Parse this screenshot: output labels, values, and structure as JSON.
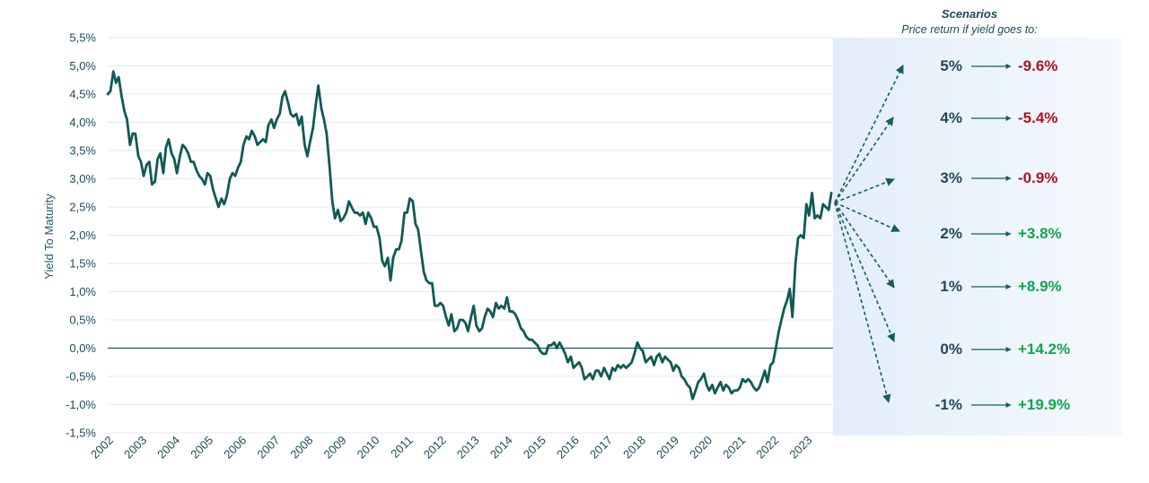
{
  "colors": {
    "line": "#0f5a55",
    "grid": "#e6e9ec",
    "zero": "#1d5557",
    "axis_text": "#1d4a57",
    "panel": "#e6f1fa",
    "arrow": "#155f5a",
    "negative": "#b0121c",
    "positive": "#13a44f"
  },
  "chart_data": {
    "type": "line",
    "ylabel": "Yield To Maturity",
    "ylim": [
      -1.5,
      5.5
    ],
    "yticks": [
      "5,5%",
      "5,0%",
      "4,5%",
      "4,0%",
      "3,5%",
      "3,0%",
      "2,5%",
      "2,0%",
      "1,5%",
      "1,0%",
      "0,5%",
      "0,0%",
      "-0,5%",
      "-1,0%",
      "-1,5%"
    ],
    "ytick_values": [
      5.5,
      5.0,
      4.5,
      4.0,
      3.5,
      3.0,
      2.5,
      2.0,
      1.5,
      1.0,
      0.5,
      0.0,
      -0.5,
      -1.0,
      -1.5
    ],
    "xlim": [
      2002.0,
      2023.8
    ],
    "xticks": [
      "2002",
      "2003",
      "2004",
      "2005",
      "2006",
      "2007",
      "2008",
      "2009",
      "2010",
      "2011",
      "2012",
      "2013",
      "2014",
      "2015",
      "2016",
      "2017",
      "2018",
      "2019",
      "2020",
      "2021",
      "2022",
      "2023"
    ],
    "xtick_values": [
      2002,
      2003,
      2004,
      2005,
      2006,
      2007,
      2008,
      2009,
      2010,
      2011,
      2012,
      2013,
      2014,
      2015,
      2016,
      2017,
      2018,
      2019,
      2020,
      2021,
      2022,
      2023
    ],
    "grid": true,
    "series": [
      {
        "x": [
          2002.0,
          2002.08,
          2002.17,
          2002.25,
          2002.33,
          2002.42,
          2002.5,
          2002.58,
          2002.67,
          2002.75,
          2002.83,
          2002.92,
          2003.0,
          2003.08,
          2003.17,
          2003.25,
          2003.33,
          2003.42,
          2003.5,
          2003.58,
          2003.67,
          2003.75,
          2003.83,
          2003.92,
          2004.0,
          2004.08,
          2004.17,
          2004.25,
          2004.33,
          2004.42,
          2004.5,
          2004.58,
          2004.67,
          2004.75,
          2004.83,
          2004.92,
          2005.0,
          2005.08,
          2005.17,
          2005.25,
          2005.33,
          2005.42,
          2005.5,
          2005.58,
          2005.67,
          2005.75,
          2005.83,
          2005.92,
          2006.0,
          2006.08,
          2006.17,
          2006.25,
          2006.33,
          2006.42,
          2006.5,
          2006.58,
          2006.67,
          2006.75,
          2006.83,
          2006.92,
          2007.0,
          2007.08,
          2007.17,
          2007.25,
          2007.33,
          2007.42,
          2007.5,
          2007.58,
          2007.67,
          2007.75,
          2007.83,
          2007.92,
          2008.0,
          2008.08,
          2008.17,
          2008.25,
          2008.33,
          2008.42,
          2008.5,
          2008.58,
          2008.67,
          2008.75,
          2008.83,
          2008.92,
          2009.0,
          2009.08,
          2009.17,
          2009.25,
          2009.33,
          2009.42,
          2009.5,
          2009.58,
          2009.67,
          2009.75,
          2009.83,
          2009.92,
          2010.0,
          2010.08,
          2010.17,
          2010.25,
          2010.33,
          2010.42,
          2010.5,
          2010.58,
          2010.67,
          2010.75,
          2010.83,
          2010.92,
          2011.0,
          2011.08,
          2011.17,
          2011.25,
          2011.33,
          2011.42,
          2011.5,
          2011.58,
          2011.67,
          2011.75,
          2011.83,
          2011.92,
          2012.0,
          2012.08,
          2012.17,
          2012.25,
          2012.33,
          2012.42,
          2012.5,
          2012.58,
          2012.67,
          2012.75,
          2012.83,
          2012.92,
          2013.0,
          2013.08,
          2013.17,
          2013.25,
          2013.33,
          2013.42,
          2013.5,
          2013.58,
          2013.67,
          2013.75,
          2013.83,
          2013.92,
          2014.0,
          2014.08,
          2014.17,
          2014.25,
          2014.33,
          2014.42,
          2014.5,
          2014.58,
          2014.67,
          2014.75,
          2014.83,
          2014.92,
          2015.0,
          2015.08,
          2015.17,
          2015.25,
          2015.33,
          2015.42,
          2015.5,
          2015.58,
          2015.67,
          2015.75,
          2015.83,
          2015.92,
          2016.0,
          2016.08,
          2016.17,
          2016.25,
          2016.33,
          2016.42,
          2016.5,
          2016.58,
          2016.67,
          2016.75,
          2016.83,
          2016.92,
          2017.0,
          2017.08,
          2017.17,
          2017.25,
          2017.33,
          2017.42,
          2017.5,
          2017.58,
          2017.67,
          2017.75,
          2017.83,
          2017.92,
          2018.0,
          2018.08,
          2018.17,
          2018.25,
          2018.33,
          2018.42,
          2018.5,
          2018.58,
          2018.67,
          2018.75,
          2018.83,
          2018.92,
          2019.0,
          2019.08,
          2019.17,
          2019.25,
          2019.33,
          2019.42,
          2019.5,
          2019.58,
          2019.67,
          2019.75,
          2019.83,
          2019.92,
          2020.0,
          2020.08,
          2020.17,
          2020.25,
          2020.33,
          2020.42,
          2020.5,
          2020.58,
          2020.67,
          2020.75,
          2020.83,
          2020.92,
          2021.0,
          2021.08,
          2021.17,
          2021.25,
          2021.33,
          2021.42,
          2021.5,
          2021.58,
          2021.67,
          2021.75,
          2021.83,
          2021.92,
          2022.0,
          2022.08,
          2022.17,
          2022.25,
          2022.33,
          2022.42,
          2022.5,
          2022.58,
          2022.67,
          2022.75,
          2022.83,
          2022.92,
          2023.0,
          2023.08,
          2023.17,
          2023.25,
          2023.33,
          2023.42,
          2023.5,
          2023.58,
          2023.67,
          2023.75
        ],
        "y": [
          4.5,
          4.55,
          4.9,
          4.7,
          4.8,
          4.45,
          4.2,
          4.05,
          3.6,
          3.8,
          3.8,
          3.4,
          3.3,
          3.05,
          3.25,
          3.3,
          2.9,
          2.95,
          3.35,
          3.45,
          3.1,
          3.55,
          3.7,
          3.45,
          3.35,
          3.1,
          3.4,
          3.6,
          3.55,
          3.45,
          3.3,
          3.3,
          3.15,
          3.05,
          3.0,
          2.9,
          3.1,
          3.05,
          2.8,
          2.65,
          2.5,
          2.65,
          2.55,
          2.7,
          3.0,
          3.1,
          3.05,
          3.2,
          3.3,
          3.6,
          3.75,
          3.7,
          3.85,
          3.75,
          3.6,
          3.65,
          3.7,
          3.65,
          3.95,
          4.05,
          3.9,
          4.05,
          4.15,
          4.45,
          4.55,
          4.35,
          4.15,
          4.1,
          4.15,
          3.95,
          4.1,
          3.6,
          3.4,
          3.65,
          3.9,
          4.3,
          4.65,
          4.25,
          4.05,
          3.8,
          3.2,
          2.6,
          2.3,
          2.45,
          2.25,
          2.3,
          2.4,
          2.6,
          2.5,
          2.4,
          2.4,
          2.35,
          2.4,
          2.2,
          2.4,
          2.3,
          2.15,
          2.15,
          1.95,
          1.55,
          1.45,
          1.6,
          1.2,
          1.6,
          1.75,
          1.75,
          1.9,
          2.4,
          2.4,
          2.65,
          2.6,
          2.2,
          2.1,
          1.7,
          1.35,
          1.2,
          1.15,
          1.15,
          0.75,
          0.75,
          0.8,
          0.75,
          0.55,
          0.4,
          0.6,
          0.3,
          0.35,
          0.5,
          0.5,
          0.45,
          0.3,
          0.55,
          0.75,
          0.4,
          0.3,
          0.35,
          0.55,
          0.7,
          0.65,
          0.55,
          0.8,
          0.7,
          0.75,
          0.7,
          0.9,
          0.65,
          0.65,
          0.6,
          0.5,
          0.35,
          0.3,
          0.2,
          0.15,
          0.15,
          0.1,
          0.05,
          -0.05,
          -0.1,
          -0.1,
          0.05,
          0.05,
          0.1,
          0.0,
          0.1,
          0.0,
          -0.1,
          -0.25,
          -0.15,
          -0.35,
          -0.3,
          -0.25,
          -0.35,
          -0.55,
          -0.5,
          -0.45,
          -0.55,
          -0.4,
          -0.4,
          -0.5,
          -0.35,
          -0.45,
          -0.55,
          -0.35,
          -0.4,
          -0.3,
          -0.35,
          -0.3,
          -0.35,
          -0.3,
          -0.25,
          -0.1,
          0.1,
          0.0,
          -0.05,
          -0.25,
          -0.2,
          -0.15,
          -0.3,
          -0.15,
          -0.1,
          -0.25,
          -0.15,
          -0.2,
          -0.25,
          -0.4,
          -0.3,
          -0.35,
          -0.5,
          -0.55,
          -0.65,
          -0.7,
          -0.9,
          -0.75,
          -0.6,
          -0.55,
          -0.45,
          -0.65,
          -0.75,
          -0.65,
          -0.8,
          -0.7,
          -0.6,
          -0.75,
          -0.65,
          -0.7,
          -0.8,
          -0.75,
          -0.75,
          -0.7,
          -0.55,
          -0.6,
          -0.55,
          -0.6,
          -0.7,
          -0.75,
          -0.7,
          -0.55,
          -0.4,
          -0.6,
          -0.3,
          -0.25,
          0.0,
          0.3,
          0.5,
          0.7,
          0.85,
          1.05,
          0.55,
          1.5,
          1.95,
          2.0,
          1.95,
          2.55,
          2.35,
          2.75,
          2.3,
          2.35,
          2.3,
          2.55,
          2.5,
          2.45,
          2.75
        ]
      }
    ]
  },
  "scenarios": {
    "title": "Scenarios",
    "subtitle": "Price return if yield goes to:",
    "items": [
      {
        "yield": "5%",
        "return": "-9.6%",
        "sign": "negative"
      },
      {
        "yield": "4%",
        "return": "-5.4%",
        "sign": "negative"
      },
      {
        "yield": "3%",
        "return": "-0.9%",
        "sign": "negative"
      },
      {
        "yield": "2%",
        "return": "+3.8%",
        "sign": "positive"
      },
      {
        "yield": "1%",
        "return": "+8.9%",
        "sign": "positive"
      },
      {
        "yield": "0%",
        "return": "+14.2%",
        "sign": "positive"
      },
      {
        "yield": "-1%",
        "return": "+19.9%",
        "sign": "positive"
      }
    ]
  }
}
